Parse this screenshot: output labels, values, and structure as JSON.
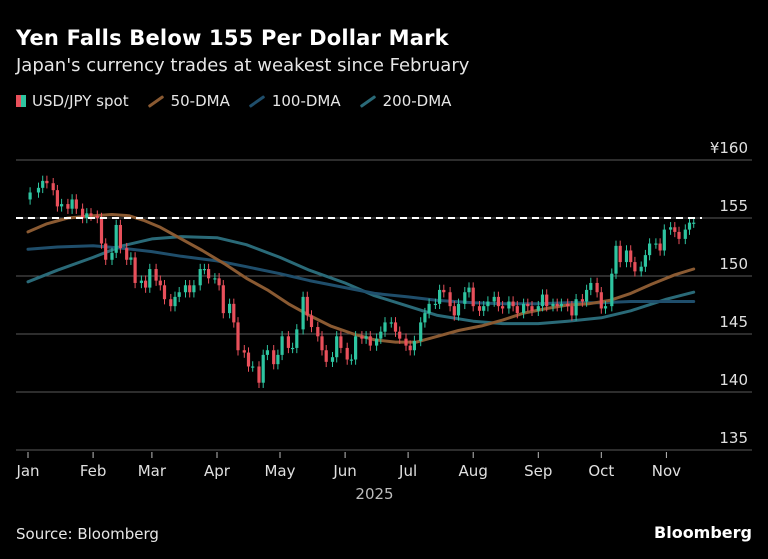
{
  "header": {
    "title": "Yen Falls Below 155 Per Dollar Mark",
    "subtitle": "Japan's currency trades at weakest since February"
  },
  "legend": [
    {
      "label": "USD/JPY spot",
      "kind": "candle",
      "colors": [
        "#e8505b",
        "#2ec4a0"
      ]
    },
    {
      "label": "50-DMA",
      "kind": "line",
      "color": "#8a5a32"
    },
    {
      "label": "100-DMA",
      "kind": "line",
      "color": "#1f4e6b"
    },
    {
      "label": "200-DMA",
      "kind": "line",
      "color": "#2a6a78"
    }
  ],
  "footer": {
    "source": "Source: Bloomberg",
    "brand": "Bloomberg"
  },
  "chart_data": {
    "type": "candlestick",
    "ylim": [
      135,
      160
    ],
    "yticks": [
      160,
      155,
      150,
      145,
      140,
      135
    ],
    "ytick_labels": [
      "¥160",
      "155",
      "150",
      "145",
      "140",
      "135"
    ],
    "grid": true,
    "reference_line": {
      "value": 155,
      "style": "dashed",
      "color": "#ffffff"
    },
    "xlim": [
      "2025-01-01",
      "2025-11-17"
    ],
    "months": [
      {
        "label": "Jan",
        "date": "2025-01-01"
      },
      {
        "label": "Feb",
        "date": "2025-02-01"
      },
      {
        "label": "Mar",
        "date": "2025-03-01"
      },
      {
        "label": "Apr",
        "date": "2025-04-01"
      },
      {
        "label": "May",
        "date": "2025-05-01"
      },
      {
        "label": "Jun",
        "date": "2025-06-01"
      },
      {
        "label": "Jul",
        "date": "2025-07-01"
      },
      {
        "label": "Aug",
        "date": "2025-08-01"
      },
      {
        "label": "Sep",
        "date": "2025-09-01"
      },
      {
        "label": "Oct",
        "date": "2025-10-01"
      },
      {
        "label": "Nov",
        "date": "2025-11-01"
      }
    ],
    "year_label": "2025",
    "up_color": "#2ec4a0",
    "down_color": "#e8505b",
    "spot_close": [
      [
        "2025-01-02",
        157.2
      ],
      [
        "2025-01-06",
        157.6
      ],
      [
        "2025-01-08",
        158.2
      ],
      [
        "2025-01-10",
        158.0
      ],
      [
        "2025-01-13",
        157.4
      ],
      [
        "2025-01-15",
        156.0
      ],
      [
        "2025-01-17",
        156.2
      ],
      [
        "2025-01-20",
        155.8
      ],
      [
        "2025-01-22",
        156.6
      ],
      [
        "2025-01-24",
        155.8
      ],
      [
        "2025-01-27",
        155.0
      ],
      [
        "2025-01-29",
        155.4
      ],
      [
        "2025-01-31",
        155.2
      ],
      [
        "2025-02-03",
        155.0
      ],
      [
        "2025-02-05",
        152.8
      ],
      [
        "2025-02-07",
        151.4
      ],
      [
        "2025-02-10",
        152.0
      ],
      [
        "2025-02-12",
        154.4
      ],
      [
        "2025-02-14",
        152.4
      ],
      [
        "2025-02-17",
        151.4
      ],
      [
        "2025-02-19",
        151.6
      ],
      [
        "2025-02-21",
        149.4
      ],
      [
        "2025-02-24",
        149.6
      ],
      [
        "2025-02-26",
        149.0
      ],
      [
        "2025-02-28",
        150.6
      ],
      [
        "2025-03-03",
        149.6
      ],
      [
        "2025-03-05",
        149.2
      ],
      [
        "2025-03-07",
        148.0
      ],
      [
        "2025-03-10",
        147.4
      ],
      [
        "2025-03-12",
        148.2
      ],
      [
        "2025-03-14",
        148.6
      ],
      [
        "2025-03-17",
        149.2
      ],
      [
        "2025-03-19",
        148.6
      ],
      [
        "2025-03-21",
        149.2
      ],
      [
        "2025-03-24",
        150.6
      ],
      [
        "2025-03-26",
        150.6
      ],
      [
        "2025-03-28",
        149.8
      ],
      [
        "2025-03-31",
        149.8
      ],
      [
        "2025-04-02",
        149.2
      ],
      [
        "2025-04-04",
        146.8
      ],
      [
        "2025-04-07",
        147.6
      ],
      [
        "2025-04-09",
        146.0
      ],
      [
        "2025-04-11",
        143.6
      ],
      [
        "2025-04-14",
        143.4
      ],
      [
        "2025-04-16",
        142.2
      ],
      [
        "2025-04-18",
        142.2
      ],
      [
        "2025-04-21",
        140.8
      ],
      [
        "2025-04-23",
        143.2
      ],
      [
        "2025-04-25",
        143.6
      ],
      [
        "2025-04-28",
        142.4
      ],
      [
        "2025-04-30",
        143.2
      ],
      [
        "2025-05-02",
        144.8
      ],
      [
        "2025-05-05",
        143.8
      ],
      [
        "2025-05-07",
        143.8
      ],
      [
        "2025-05-09",
        145.4
      ],
      [
        "2025-05-12",
        148.2
      ],
      [
        "2025-05-14",
        146.6
      ],
      [
        "2025-05-16",
        145.6
      ],
      [
        "2025-05-19",
        144.8
      ],
      [
        "2025-05-21",
        143.6
      ],
      [
        "2025-05-23",
        142.6
      ],
      [
        "2025-05-26",
        143.0
      ],
      [
        "2025-05-28",
        144.8
      ],
      [
        "2025-05-30",
        143.8
      ],
      [
        "2025-06-02",
        142.8
      ],
      [
        "2025-06-04",
        142.8
      ],
      [
        "2025-06-06",
        144.8
      ],
      [
        "2025-06-09",
        144.6
      ],
      [
        "2025-06-11",
        144.8
      ],
      [
        "2025-06-13",
        144.0
      ],
      [
        "2025-06-16",
        144.6
      ],
      [
        "2025-06-18",
        145.2
      ],
      [
        "2025-06-20",
        146.0
      ],
      [
        "2025-06-23",
        146.0
      ],
      [
        "2025-06-25",
        145.2
      ],
      [
        "2025-06-27",
        144.6
      ],
      [
        "2025-06-30",
        144.0
      ],
      [
        "2025-07-02",
        143.6
      ],
      [
        "2025-07-04",
        144.4
      ],
      [
        "2025-07-07",
        146.0
      ],
      [
        "2025-07-09",
        146.8
      ],
      [
        "2025-07-11",
        147.6
      ],
      [
        "2025-07-14",
        147.6
      ],
      [
        "2025-07-16",
        148.8
      ],
      [
        "2025-07-18",
        148.6
      ],
      [
        "2025-07-21",
        147.4
      ],
      [
        "2025-07-23",
        146.6
      ],
      [
        "2025-07-25",
        147.6
      ],
      [
        "2025-07-28",
        148.6
      ],
      [
        "2025-07-30",
        149.0
      ],
      [
        "2025-08-01",
        147.4
      ],
      [
        "2025-08-04",
        147.0
      ],
      [
        "2025-08-06",
        147.4
      ],
      [
        "2025-08-08",
        147.8
      ],
      [
        "2025-08-11",
        148.2
      ],
      [
        "2025-08-13",
        147.4
      ],
      [
        "2025-08-15",
        147.2
      ],
      [
        "2025-08-18",
        147.8
      ],
      [
        "2025-08-20",
        147.4
      ],
      [
        "2025-08-22",
        146.8
      ],
      [
        "2025-08-25",
        147.6
      ],
      [
        "2025-08-27",
        147.4
      ],
      [
        "2025-08-29",
        147.0
      ],
      [
        "2025-09-01",
        147.4
      ],
      [
        "2025-09-03",
        148.4
      ],
      [
        "2025-09-05",
        147.4
      ],
      [
        "2025-09-08",
        147.6
      ],
      [
        "2025-09-10",
        147.4
      ],
      [
        "2025-09-12",
        147.6
      ],
      [
        "2025-09-15",
        147.4
      ],
      [
        "2025-09-17",
        146.6
      ],
      [
        "2025-09-19",
        148.0
      ],
      [
        "2025-09-22",
        147.8
      ],
      [
        "2025-09-24",
        148.8
      ],
      [
        "2025-09-26",
        149.4
      ],
      [
        "2025-09-29",
        148.6
      ],
      [
        "2025-10-01",
        147.2
      ],
      [
        "2025-10-03",
        147.4
      ],
      [
        "2025-10-06",
        150.2
      ],
      [
        "2025-10-08",
        152.6
      ],
      [
        "2025-10-10",
        151.2
      ],
      [
        "2025-10-13",
        152.2
      ],
      [
        "2025-10-15",
        151.2
      ],
      [
        "2025-10-17",
        150.4
      ],
      [
        "2025-10-20",
        150.8
      ],
      [
        "2025-10-22",
        151.8
      ],
      [
        "2025-10-24",
        152.8
      ],
      [
        "2025-10-27",
        152.8
      ],
      [
        "2025-10-29",
        152.2
      ],
      [
        "2025-10-31",
        154.0
      ],
      [
        "2025-11-03",
        154.2
      ],
      [
        "2025-11-05",
        153.8
      ],
      [
        "2025-11-07",
        153.2
      ],
      [
        "2025-11-10",
        154.0
      ],
      [
        "2025-11-12",
        154.6
      ],
      [
        "2025-11-14",
        154.6
      ]
    ],
    "series": [
      {
        "name": "50-DMA",
        "color": "#8a5a32",
        "points": [
          [
            "2025-01-01",
            153.8
          ],
          [
            "2025-01-10",
            154.5
          ],
          [
            "2025-01-20",
            155.0
          ],
          [
            "2025-02-01",
            155.2
          ],
          [
            "2025-02-10",
            155.3
          ],
          [
            "2025-02-18",
            155.2
          ],
          [
            "2025-02-25",
            154.8
          ],
          [
            "2025-03-05",
            154.2
          ],
          [
            "2025-03-15",
            153.2
          ],
          [
            "2025-03-25",
            152.2
          ],
          [
            "2025-04-05",
            151.0
          ],
          [
            "2025-04-15",
            149.8
          ],
          [
            "2025-04-25",
            148.8
          ],
          [
            "2025-05-05",
            147.6
          ],
          [
            "2025-05-15",
            146.6
          ],
          [
            "2025-05-25",
            145.7
          ],
          [
            "2025-06-05",
            145.0
          ],
          [
            "2025-06-15",
            144.5
          ],
          [
            "2025-06-25",
            144.3
          ],
          [
            "2025-07-05",
            144.3
          ],
          [
            "2025-07-15",
            144.8
          ],
          [
            "2025-07-25",
            145.3
          ],
          [
            "2025-08-05",
            145.7
          ],
          [
            "2025-08-15",
            146.2
          ],
          [
            "2025-08-25",
            146.8
          ],
          [
            "2025-09-05",
            147.2
          ],
          [
            "2025-09-15",
            147.5
          ],
          [
            "2025-09-25",
            147.6
          ],
          [
            "2025-10-05",
            147.9
          ],
          [
            "2025-10-15",
            148.5
          ],
          [
            "2025-10-25",
            149.3
          ],
          [
            "2025-11-05",
            150.1
          ],
          [
            "2025-11-14",
            150.6
          ]
        ]
      },
      {
        "name": "100-DMA",
        "color": "#1f4e6b",
        "points": [
          [
            "2025-01-01",
            152.3
          ],
          [
            "2025-01-15",
            152.5
          ],
          [
            "2025-02-01",
            152.6
          ],
          [
            "2025-02-15",
            152.4
          ],
          [
            "2025-03-01",
            152.1
          ],
          [
            "2025-03-15",
            151.7
          ],
          [
            "2025-04-01",
            151.3
          ],
          [
            "2025-04-15",
            150.8
          ],
          [
            "2025-05-01",
            150.2
          ],
          [
            "2025-05-15",
            149.6
          ],
          [
            "2025-06-01",
            149.0
          ],
          [
            "2025-06-15",
            148.5
          ],
          [
            "2025-07-01",
            148.2
          ],
          [
            "2025-07-15",
            147.9
          ],
          [
            "2025-08-01",
            147.7
          ],
          [
            "2025-08-15",
            147.6
          ],
          [
            "2025-09-01",
            147.6
          ],
          [
            "2025-09-15",
            147.7
          ],
          [
            "2025-10-01",
            147.7
          ],
          [
            "2025-10-15",
            147.8
          ],
          [
            "2025-11-01",
            147.8
          ],
          [
            "2025-11-14",
            147.8
          ]
        ]
      },
      {
        "name": "200-DMA",
        "color": "#2a6a78",
        "points": [
          [
            "2025-01-01",
            149.5
          ],
          [
            "2025-01-15",
            150.5
          ],
          [
            "2025-02-01",
            151.6
          ],
          [
            "2025-02-15",
            152.6
          ],
          [
            "2025-03-01",
            153.2
          ],
          [
            "2025-03-15",
            153.4
          ],
          [
            "2025-04-01",
            153.3
          ],
          [
            "2025-04-15",
            152.7
          ],
          [
            "2025-05-01",
            151.6
          ],
          [
            "2025-05-15",
            150.5
          ],
          [
            "2025-06-01",
            149.4
          ],
          [
            "2025-06-15",
            148.3
          ],
          [
            "2025-07-01",
            147.4
          ],
          [
            "2025-07-15",
            146.6
          ],
          [
            "2025-08-01",
            146.1
          ],
          [
            "2025-08-15",
            145.9
          ],
          [
            "2025-09-01",
            145.9
          ],
          [
            "2025-09-15",
            146.1
          ],
          [
            "2025-10-01",
            146.4
          ],
          [
            "2025-10-15",
            147.0
          ],
          [
            "2025-11-01",
            148.0
          ],
          [
            "2025-11-14",
            148.6
          ]
        ]
      }
    ]
  }
}
